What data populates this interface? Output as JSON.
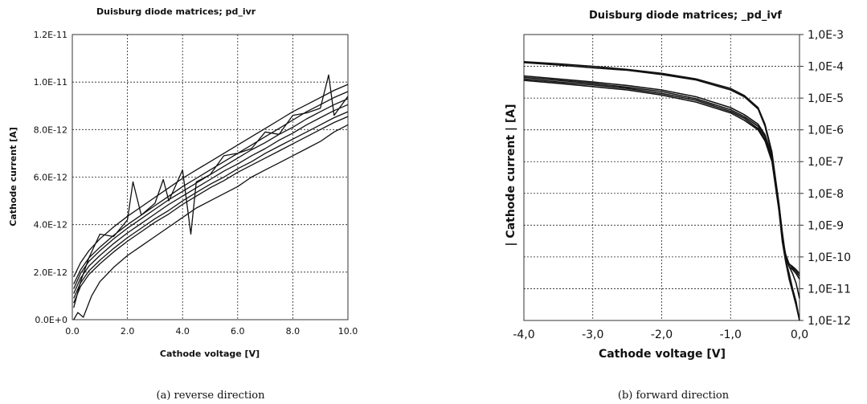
{
  "figures": [
    {
      "caption": "(a) reverse direction"
    },
    {
      "caption": "(b) forward direction"
    }
  ],
  "chart_data": [
    {
      "type": "line",
      "title": "Duisburg diode matrices; pd_ivr",
      "xlabel": "Cathode voltage [V]",
      "ylabel": "Cathode current [A]",
      "xlim": [
        0,
        10
      ],
      "ylim": [
        0,
        1.2e-11
      ],
      "xticks": [
        "0.0",
        "2.0",
        "4.0",
        "6.0",
        "8.0",
        "10.0"
      ],
      "yticks": [
        "0.0E+0",
        "2.0E-12",
        "4.0E-12",
        "6.0E-12",
        "8.0E-12",
        "1.0E-11",
        "1.2E-11"
      ],
      "grid": true,
      "legend": "none",
      "series": [
        {
          "x": [
            0.05,
            0.3,
            0.6,
            1,
            1.5,
            2,
            2.5,
            3,
            3.5,
            4,
            4.5,
            5,
            5.5,
            6,
            6.5,
            7,
            7.5,
            8,
            8.5,
            9,
            9.5,
            10
          ],
          "y": [
            1.5e-12,
            2.1e-12,
            2.6e-12,
            3.05e-12,
            3.55e-12,
            4e-12,
            4.4e-12,
            4.8e-12,
            5.2e-12,
            5.6e-12,
            5.95e-12,
            6.3e-12,
            6.65e-12,
            7e-12,
            7.35e-12,
            7.7e-12,
            8.05e-12,
            8.4e-12,
            8.75e-12,
            9.05e-12,
            9.35e-12,
            9.6e-12
          ]
        },
        {
          "x": [
            0.05,
            0.3,
            0.6,
            1,
            1.5,
            2,
            2.5,
            3,
            3.5,
            4,
            4.5,
            5,
            5.5,
            6,
            6.5,
            7,
            7.5,
            8,
            8.5,
            9,
            9.5,
            10
          ],
          "y": [
            1.3e-12,
            1.95e-12,
            2.45e-12,
            2.9e-12,
            3.4e-12,
            3.85e-12,
            4.25e-12,
            4.65e-12,
            5.05e-12,
            5.4e-12,
            5.75e-12,
            6.1e-12,
            6.45e-12,
            6.8e-12,
            7.15e-12,
            7.45e-12,
            7.8e-12,
            8.1e-12,
            8.45e-12,
            8.75e-12,
            9.05e-12,
            9.3e-12
          ]
        },
        {
          "x": [
            0.05,
            0.3,
            0.6,
            1,
            1.5,
            2,
            2.5,
            3,
            3.5,
            4,
            4.5,
            5,
            5.5,
            6,
            6.5,
            7,
            7.5,
            8,
            8.5,
            9,
            9.5,
            10
          ],
          "y": [
            1.1e-12,
            1.75e-12,
            2.25e-12,
            2.7e-12,
            3.2e-12,
            3.65e-12,
            4.05e-12,
            4.45e-12,
            4.85e-12,
            5.2e-12,
            5.55e-12,
            5.9e-12,
            6.25e-12,
            6.55e-12,
            6.9e-12,
            7.2e-12,
            7.55e-12,
            7.85e-12,
            8.2e-12,
            8.5e-12,
            8.8e-12,
            9.05e-12
          ]
        },
        {
          "x": [
            0.05,
            0.3,
            0.6,
            1,
            1.5,
            2,
            2.5,
            3,
            3.5,
            4,
            4.5,
            5,
            5.5,
            6,
            6.5,
            7,
            7.5,
            8,
            8.5,
            9,
            9.5,
            10
          ],
          "y": [
            9e-13,
            1.55e-12,
            2.05e-12,
            2.5e-12,
            3e-12,
            3.45e-12,
            3.85e-12,
            4.25e-12,
            4.6e-12,
            5e-12,
            5.35e-12,
            5.7e-12,
            6e-12,
            6.35e-12,
            6.65e-12,
            7e-12,
            7.3e-12,
            7.6e-12,
            7.9e-12,
            8.2e-12,
            8.5e-12,
            8.75e-12
          ]
        },
        {
          "x": [
            0.05,
            0.3,
            0.6,
            1,
            1.5,
            2,
            2.5,
            3,
            3.5,
            4,
            4.5,
            5,
            5.5,
            6,
            6.5,
            7,
            7.5,
            8,
            8.5,
            9,
            9.5,
            10
          ],
          "y": [
            7e-13,
            1.4e-12,
            1.9e-12,
            2.35e-12,
            2.85e-12,
            3.3e-12,
            3.7e-12,
            4.1e-12,
            4.45e-12,
            4.85e-12,
            5.2e-12,
            5.55e-12,
            5.85e-12,
            6.2e-12,
            6.5e-12,
            6.8e-12,
            7.1e-12,
            7.4e-12,
            7.7e-12,
            8e-12,
            8.3e-12,
            8.55e-12
          ]
        },
        {
          "x": [
            0.05,
            0.3,
            0.6,
            1,
            1.5,
            2,
            2.2,
            2.5,
            3,
            3.3,
            3.5,
            4,
            4.3,
            4.5,
            5,
            5.5,
            6,
            6.5,
            7,
            7.5,
            8,
            8.5,
            9,
            9.3,
            9.5,
            10
          ],
          "y": [
            5e-13,
            1.6e-12,
            2.6e-12,
            3.6e-12,
            3.5e-12,
            4.2e-12,
            5.8e-12,
            4.4e-12,
            4.9e-12,
            5.9e-12,
            5e-12,
            6.3e-12,
            3.6e-12,
            5.8e-12,
            6.1e-12,
            6.9e-12,
            7e-12,
            7.2e-12,
            7.9e-12,
            7.8e-12,
            8.6e-12,
            8.7e-12,
            8.9e-12,
            1.03e-11,
            8.6e-12,
            9.4e-12
          ]
        },
        {
          "x": [
            0.05,
            0.3,
            0.6,
            1,
            1.5,
            2,
            2.5,
            3,
            3.5,
            4,
            4.5,
            5,
            5.5,
            6,
            6.5,
            7,
            7.5,
            8,
            8.5,
            9,
            9.5,
            10
          ],
          "y": [
            1.8e-12,
            2.4e-12,
            2.9e-12,
            3.4e-12,
            3.9e-12,
            4.35e-12,
            4.75e-12,
            5.15e-12,
            5.55e-12,
            5.95e-12,
            6.3e-12,
            6.65e-12,
            7e-12,
            7.35e-12,
            7.7e-12,
            8.05e-12,
            8.4e-12,
            8.75e-12,
            9.05e-12,
            9.35e-12,
            9.65e-12,
            9.9e-12
          ]
        },
        {
          "x": [
            0.05,
            0.2,
            0.4,
            0.7,
            1,
            1.5,
            2,
            2.5,
            3,
            3.5,
            4,
            4.5,
            5,
            5.5,
            6,
            6.5,
            7,
            7.5,
            8,
            8.5,
            9,
            9.5,
            10
          ],
          "y": [
            0.0,
            3e-13,
            1e-13,
            1e-12,
            1.6e-12,
            2.2e-12,
            2.7e-12,
            3.1e-12,
            3.5e-12,
            3.9e-12,
            4.3e-12,
            4.7e-12,
            5e-12,
            5.3e-12,
            5.6e-12,
            6e-12,
            6.3e-12,
            6.6e-12,
            6.9e-12,
            7.2e-12,
            7.5e-12,
            7.9e-12,
            8.2e-12
          ]
        }
      ]
    },
    {
      "type": "line",
      "title": "Duisburg diode matrices; _pd_ivf",
      "xlabel": "Cathode voltage [V]",
      "ylabel": "| Cathode current | [A]",
      "xlim": [
        -4,
        0
      ],
      "ylim": [
        1e-12,
        0.001
      ],
      "yscale": "log",
      "xticks": [
        "-4,0",
        "-3,0",
        "-2,0",
        "-1,0",
        "0,0"
      ],
      "yticks": [
        "1,0E-12",
        "1,0E-11",
        "1,0E-10",
        "1,0E-9",
        "1,0E-8",
        "1,0E-7",
        "1,0E-6",
        "1,0E-5",
        "1,0E-4",
        "1,0E-3"
      ],
      "grid": true,
      "legend": "none",
      "series": [
        {
          "x": [
            -4,
            -3.5,
            -3,
            -2.5,
            -2,
            -1.5,
            -1,
            -0.8,
            -0.6,
            -0.5,
            -0.4,
            -0.3,
            -0.25,
            -0.2,
            -0.15,
            -0.1,
            -0.05,
            0
          ],
          "y": [
            0.00014,
            0.00012,
            0.0001,
            8e-05,
            6e-05,
            4e-05,
            2e-05,
            1.2e-05,
            5e-06,
            1.5e-06,
            2e-07,
            5e-09,
            6e-10,
            1e-10,
            6e-11,
            5e-11,
            4e-11,
            3e-11
          ]
        },
        {
          "x": [
            -4,
            -3.5,
            -3,
            -2.5,
            -2,
            -1.5,
            -1,
            -0.8,
            -0.6,
            -0.5,
            -0.4,
            -0.3,
            -0.25,
            -0.2,
            -0.15,
            -0.1,
            -0.05,
            0
          ],
          "y": [
            0.00013,
            0.00011,
            9e-05,
            7.5e-05,
            5.5e-05,
            3.7e-05,
            1.8e-05,
            1.1e-05,
            4.5e-06,
            1.3e-06,
            1.7e-07,
            4e-09,
            5e-10,
            9e-11,
            5e-11,
            3e-11,
            1.5e-11,
            5e-12
          ]
        },
        {
          "x": [
            -4,
            -3.5,
            -3,
            -2.5,
            -2,
            -1.5,
            -1,
            -0.8,
            -0.6,
            -0.5,
            -0.4,
            -0.3,
            -0.25,
            -0.2,
            -0.15,
            -0.1,
            -0.05,
            0
          ],
          "y": [
            5e-05,
            4e-05,
            3.2e-05,
            2.5e-05,
            1.8e-05,
            1.1e-05,
            5e-06,
            3e-06,
            1.5e-06,
            7e-07,
            1.5e-07,
            5e-09,
            5e-10,
            1e-10,
            5e-11,
            4e-11,
            3e-11,
            2e-11
          ]
        },
        {
          "x": [
            -4,
            -3.5,
            -3,
            -2.5,
            -2,
            -1.5,
            -1,
            -0.8,
            -0.6,
            -0.5,
            -0.4,
            -0.3,
            -0.25,
            -0.2,
            -0.15,
            -0.1,
            -0.05,
            0
          ],
          "y": [
            4.5e-05,
            3.6e-05,
            2.9e-05,
            2.2e-05,
            1.6e-05,
            9.5e-06,
            4.3e-06,
            2.6e-06,
            1.3e-06,
            6e-07,
            1.3e-07,
            4e-09,
            4e-10,
            8e-11,
            3e-11,
            1e-11,
            4e-12,
            1e-12
          ]
        },
        {
          "x": [
            -4,
            -3.5,
            -3,
            -2.5,
            -2,
            -1.5,
            -1,
            -0.8,
            -0.6,
            -0.5,
            -0.4,
            -0.3,
            -0.25,
            -0.2,
            -0.15,
            -0.1,
            -0.05,
            0
          ],
          "y": [
            4e-05,
            3.2e-05,
            2.6e-05,
            2e-05,
            1.4e-05,
            8.5e-06,
            3.8e-06,
            2.3e-06,
            1.1e-06,
            5e-07,
            1.1e-07,
            3.5e-09,
            4e-10,
            1.2e-10,
            6e-11,
            4.5e-11,
            3.5e-11,
            2.5e-11
          ]
        },
        {
          "x": [
            -4,
            -3.5,
            -3,
            -2.5,
            -2,
            -1.5,
            -1,
            -0.8,
            -0.6,
            -0.5,
            -0.4,
            -0.3,
            -0.25,
            -0.2,
            -0.15,
            -0.1,
            -0.05,
            0
          ],
          "y": [
            3.6e-05,
            2.9e-05,
            2.3e-05,
            1.8e-05,
            1.25e-05,
            7.5e-06,
            3.4e-06,
            2e-06,
            1e-06,
            4.5e-07,
            1e-07,
            3e-09,
            3e-10,
            7e-11,
            2e-11,
            8e-12,
            3e-12,
            1e-12
          ]
        }
      ]
    }
  ]
}
